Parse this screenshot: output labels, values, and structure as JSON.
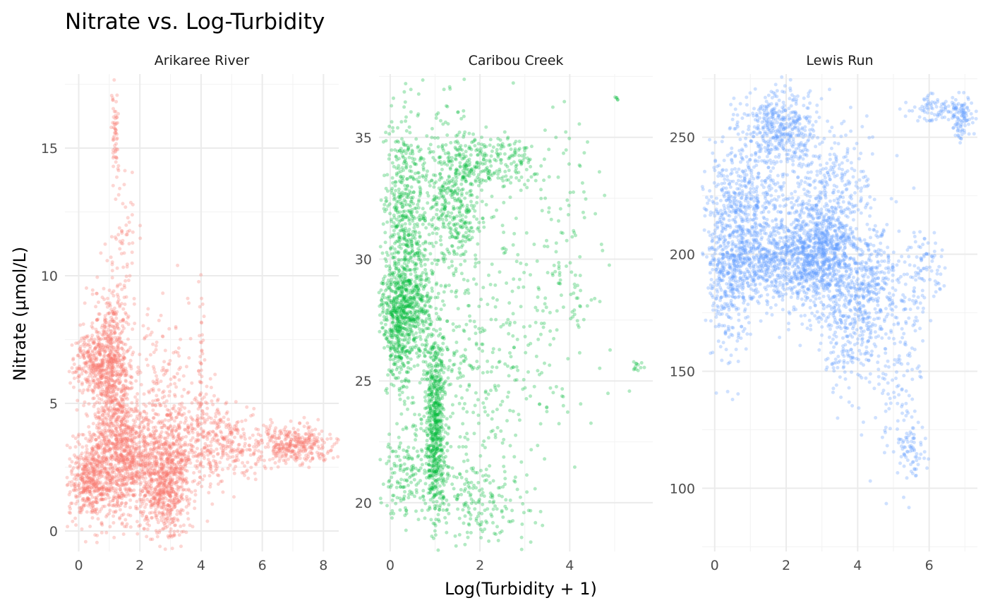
{
  "chart_data": {
    "type": "scatter",
    "title": "Nitrate vs. Log-Turbidity",
    "xlabel": "Log(Turbidity + 1)",
    "ylabel": "Nitrate (µmol/L)",
    "grid": true,
    "legend": "none",
    "panels": [
      {
        "name": "Arikaree River",
        "color": "#F8766D",
        "xlim": [
          -0.45,
          8.5
        ],
        "ylim": [
          -0.8,
          17.9
        ],
        "xticks": [
          0,
          2,
          4,
          6,
          8
        ],
        "yticks": [
          0,
          5,
          10,
          15
        ],
        "clusters": [
          {
            "x": 1.1,
            "y": 6.4,
            "sx": 0.35,
            "sy": 1.6,
            "n": 700
          },
          {
            "x": 0.5,
            "y": 6.6,
            "sx": 0.35,
            "sy": 0.6,
            "n": 250
          },
          {
            "x": 0.4,
            "y": 2.0,
            "sx": 0.35,
            "sy": 0.8,
            "n": 450
          },
          {
            "x": 1.3,
            "y": 3.0,
            "sx": 0.5,
            "sy": 1.1,
            "n": 550
          },
          {
            "x": 2.0,
            "y": 2.3,
            "sx": 0.6,
            "sy": 1.1,
            "n": 450
          },
          {
            "x": 2.9,
            "y": 2.0,
            "sx": 0.35,
            "sy": 1.2,
            "n": 550
          },
          {
            "x": 2.6,
            "y": 5.0,
            "sx": 0.5,
            "sy": 1.8,
            "n": 200
          },
          {
            "x": 3.8,
            "y": 3.5,
            "sx": 0.6,
            "sy": 1.0,
            "n": 300
          },
          {
            "x": 5.0,
            "y": 3.5,
            "sx": 0.6,
            "sy": 0.6,
            "n": 200
          },
          {
            "x": 7.1,
            "y": 3.4,
            "sx": 0.65,
            "sy": 0.35,
            "n": 350
          },
          {
            "x": 1.2,
            "y": 15.5,
            "sx": 0.06,
            "sy": 1.0,
            "n": 60
          },
          {
            "x": 1.5,
            "y": 11.5,
            "sx": 0.2,
            "sy": 1.2,
            "n": 50
          },
          {
            "x": 4.0,
            "y": 6.5,
            "sx": 0.05,
            "sy": 1.4,
            "n": 40
          }
        ]
      },
      {
        "name": "Caribou Creek",
        "color": "#00BA38",
        "xlim": [
          -0.25,
          5.85
        ],
        "ylim": [
          18.0,
          37.6
        ],
        "xticks": [
          0,
          2,
          4
        ],
        "yticks": [
          20,
          25,
          30,
          35
        ],
        "clusters": [
          {
            "x": 0.35,
            "y": 31.5,
            "sx": 0.25,
            "sy": 2.2,
            "n": 550
          },
          {
            "x": 0.35,
            "y": 28.0,
            "sx": 0.3,
            "sy": 1.0,
            "n": 500
          },
          {
            "x": 0.2,
            "y": 26.8,
            "sx": 0.15,
            "sy": 1.2,
            "n": 200
          },
          {
            "x": 1.0,
            "y": 23.0,
            "sx": 0.12,
            "sy": 2.0,
            "n": 650
          },
          {
            "x": 1.4,
            "y": 32.5,
            "sx": 0.35,
            "sy": 1.5,
            "n": 450
          },
          {
            "x": 1.6,
            "y": 25.0,
            "sx": 0.6,
            "sy": 2.5,
            "n": 250
          },
          {
            "x": 0.3,
            "y": 21.5,
            "sx": 0.3,
            "sy": 1.0,
            "n": 150
          },
          {
            "x": 2.3,
            "y": 34.0,
            "sx": 0.5,
            "sy": 0.5,
            "n": 200
          },
          {
            "x": 2.9,
            "y": 27.0,
            "sx": 0.5,
            "sy": 3.5,
            "n": 150
          },
          {
            "x": 4.0,
            "y": 29.5,
            "sx": 0.4,
            "sy": 2.8,
            "n": 110
          },
          {
            "x": 2.0,
            "y": 20.0,
            "sx": 0.5,
            "sy": 0.9,
            "n": 150
          },
          {
            "x": 5.5,
            "y": 25.6,
            "sx": 0.08,
            "sy": 0.12,
            "n": 12
          },
          {
            "x": 5.05,
            "y": 36.6,
            "sx": 0.02,
            "sy": 0.05,
            "n": 5
          }
        ]
      },
      {
        "name": "Lewis Run",
        "color": "#619CFF",
        "xlim": [
          -0.35,
          7.35
        ],
        "ylim": [
          73,
          277
        ],
        "xticks": [
          0,
          2,
          4,
          6
        ],
        "yticks": [
          100,
          150,
          200,
          250
        ],
        "clusters": [
          {
            "x": 2.9,
            "y": 200,
            "sx": 0.6,
            "sy": 11,
            "n": 900
          },
          {
            "x": 1.4,
            "y": 195,
            "sx": 0.8,
            "sy": 9,
            "n": 600
          },
          {
            "x": 0.4,
            "y": 200,
            "sx": 0.35,
            "sy": 22,
            "n": 450
          },
          {
            "x": 1.8,
            "y": 253,
            "sx": 0.55,
            "sy": 8,
            "n": 450
          },
          {
            "x": 1.2,
            "y": 222,
            "sx": 0.8,
            "sy": 12,
            "n": 400
          },
          {
            "x": 3.4,
            "y": 225,
            "sx": 0.6,
            "sy": 14,
            "n": 250
          },
          {
            "x": 3.8,
            "y": 170,
            "sx": 0.5,
            "sy": 15,
            "n": 350
          },
          {
            "x": 4.5,
            "y": 190,
            "sx": 0.35,
            "sy": 10,
            "n": 200
          },
          {
            "x": 5.2,
            "y": 150,
            "sx": 0.35,
            "sy": 25,
            "n": 150
          },
          {
            "x": 5.9,
            "y": 195,
            "sx": 0.25,
            "sy": 8,
            "n": 80
          },
          {
            "x": 6.3,
            "y": 262,
            "sx": 0.5,
            "sy": 3,
            "n": 100
          },
          {
            "x": 6.9,
            "y": 257,
            "sx": 0.15,
            "sy": 5,
            "n": 80
          },
          {
            "x": 5.5,
            "y": 115,
            "sx": 0.2,
            "sy": 5,
            "n": 60
          }
        ]
      }
    ]
  }
}
